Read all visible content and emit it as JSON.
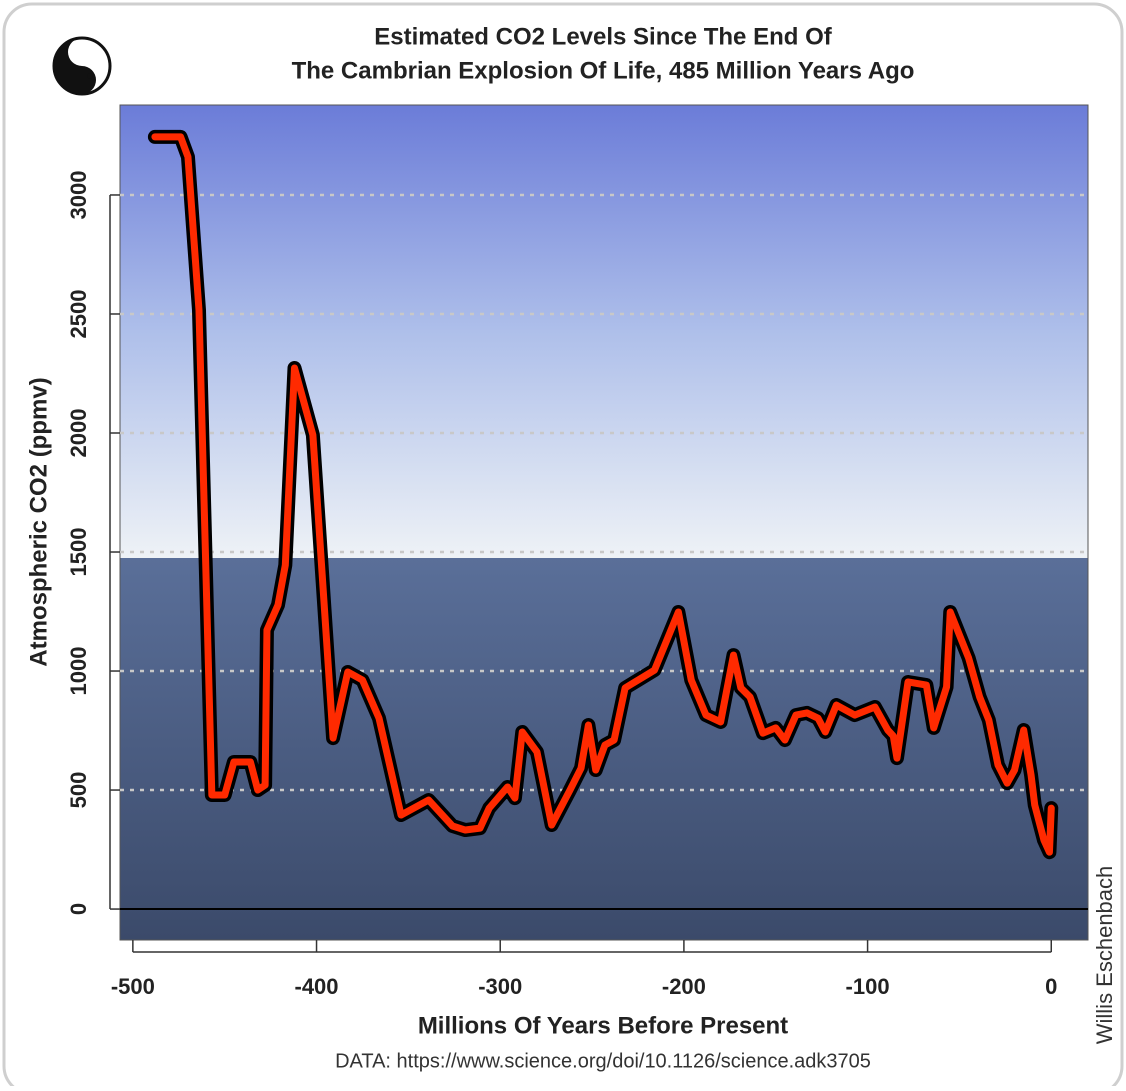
{
  "chart_data": {
    "type": "line",
    "title": [
      "Estimated CO2 Levels Since The End Of",
      "The Cambrian Explosion Of Life, 485 Million Years Ago"
    ],
    "x_label": "Millions Of Years Before Present",
    "y_label": "Atmospheric CO2 (ppmv)",
    "source": "DATA: https://www.science.org/doi/10.1126/science.adk3705",
    "credit": "Willis Eschenbach",
    "xlim": [
      -507,
      20
    ],
    "ylim": [
      -130,
      3378
    ],
    "xticks": [
      -500,
      -400,
      -300,
      -200,
      -100,
      0
    ],
    "yticks": [
      0,
      500,
      1000,
      1500,
      2000,
      2500,
      3000
    ],
    "grid": true,
    "x": [
      -488,
      -474,
      -470,
      -464,
      -457,
      -450,
      -445,
      -436,
      -432,
      -428,
      -427,
      -421,
      -417,
      -412,
      -402,
      -391,
      -383,
      -375,
      -366,
      -354,
      -339,
      -326,
      -319,
      -311,
      -306,
      -296,
      -292,
      -288,
      -280,
      -272,
      -262,
      -256,
      -252,
      -248,
      -243,
      -238,
      -232,
      -216,
      -203,
      -196,
      -188,
      -180,
      -173,
      -169,
      -164,
      -157,
      -150,
      -145,
      -139,
      -133,
      -127,
      -123,
      -117,
      -107,
      -96,
      -89,
      -86,
      -84,
      -78,
      -68,
      -64,
      -57,
      -55,
      -45,
      -39,
      -34,
      -29,
      -24,
      -20,
      -15,
      -11,
      -9,
      -4,
      -1,
      0
    ],
    "series": [
      {
        "color": "#ff2a00",
        "values": [
          3244,
          3244,
          3160,
          2517,
          479,
          479,
          618,
          618,
          500,
          521,
          1172,
          1277,
          1445,
          2273,
          1992,
          718,
          996,
          962,
          802,
          395,
          458,
          349,
          332,
          340,
          424,
          513,
          466,
          744,
          660,
          353,
          500,
          592,
          773,
          584,
          689,
          710,
          929,
          1004,
          1248,
          962,
          815,
          786,
          1067,
          929,
          891,
          739,
          761,
          710,
          815,
          824,
          802,
          744,
          857,
          815,
          849,
          752,
          727,
          634,
          954,
          941,
          761,
          933,
          1248,
          1055,
          891,
          794,
          605,
          529,
          584,
          752,
          563,
          437,
          290,
          239,
          424
        ]
      }
    ]
  }
}
